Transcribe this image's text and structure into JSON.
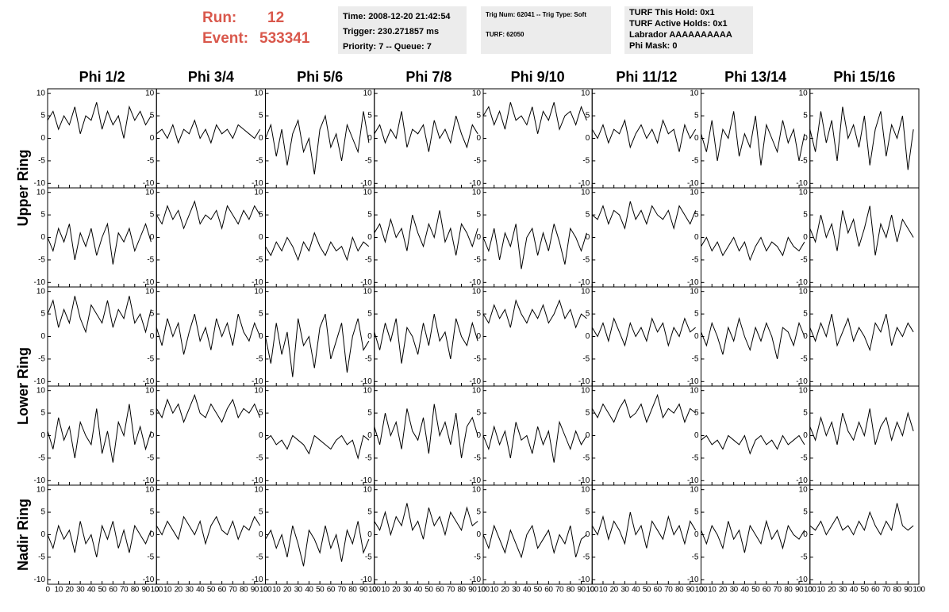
{
  "header": {
    "run_label": "Run:",
    "run": "12",
    "event_label": "Event:",
    "event": "533341",
    "box1": [
      "Time: 2008-12-20 21:42:54",
      "Trigger: 230.271857 ms",
      "Priority: 7 -- Queue: 7"
    ],
    "box2": [
      "Trig Num: 62041 -- Trig Type: Soft",
      "TURF: 62050"
    ],
    "box3": [
      "TURF This Hold: 0x1",
      "TURF Active Holds: 0x1",
      "Labrador AAAAAAAAAA",
      "Phi Mask: 0"
    ]
  },
  "chart_data": {
    "type": "line",
    "color": "#000000",
    "columns": [
      "Phi 1/2",
      "Phi 3/4",
      "Phi 5/6",
      "Phi 7/8",
      "Phi 9/10",
      "Phi 11/12",
      "Phi 13/14",
      "Phi 15/16"
    ],
    "rows": [
      "Upper Ring",
      "Lower Ring",
      "Nadir Ring"
    ],
    "xlim": [
      0,
      100
    ],
    "xticks": [
      0,
      10,
      20,
      30,
      40,
      50,
      60,
      70,
      80,
      90,
      100
    ],
    "ylim": [
      -11,
      11
    ],
    "yticks": [
      -10,
      -5,
      0,
      5,
      10
    ],
    "x": [
      0,
      5,
      10,
      15,
      20,
      25,
      30,
      35,
      40,
      45,
      50,
      55,
      60,
      65,
      70,
      75,
      80,
      85,
      90,
      95
    ],
    "traces": [
      [
        [
          4,
          6,
          2,
          5,
          3,
          7,
          1,
          5,
          4,
          8,
          2,
          6,
          3,
          5,
          0,
          7,
          4,
          6,
          3,
          5
        ],
        [
          1,
          2,
          0,
          3,
          -1,
          2,
          1,
          4,
          0,
          2,
          -1,
          3,
          1,
          2,
          0,
          3,
          2,
          1,
          0,
          2
        ],
        [
          0,
          3,
          -4,
          2,
          -6,
          1,
          4,
          -3,
          0,
          -8,
          2,
          5,
          -2,
          1,
          -5,
          3,
          0,
          -3,
          6,
          -1
        ],
        [
          1,
          3,
          -1,
          2,
          0,
          6,
          -2,
          2,
          1,
          3,
          -3,
          4,
          0,
          2,
          -1,
          5,
          1,
          -2,
          3,
          1
        ],
        [
          5,
          7,
          3,
          6,
          2,
          8,
          4,
          5,
          3,
          7,
          1,
          6,
          4,
          8,
          2,
          5,
          6,
          3,
          7,
          4
        ],
        [
          2,
          0,
          3,
          -1,
          2,
          1,
          4,
          -2,
          1,
          3,
          0,
          2,
          -1,
          4,
          1,
          2,
          -3,
          3,
          0,
          2
        ],
        [
          1,
          -3,
          4,
          -5,
          2,
          0,
          6,
          -4,
          1,
          -2,
          5,
          -6,
          3,
          0,
          -3,
          4,
          -1,
          2,
          -5,
          1
        ],
        [
          2,
          -3,
          6,
          -1,
          4,
          -5,
          7,
          0,
          3,
          -2,
          5,
          -6,
          2,
          6,
          -4,
          3,
          0,
          5,
          -7,
          2
        ]
      ],
      [
        [
          0,
          -3,
          2,
          -1,
          3,
          -5,
          1,
          -2,
          2,
          -4,
          0,
          3,
          -6,
          1,
          -1,
          2,
          -3,
          0,
          3,
          -1
        ],
        [
          5,
          3,
          7,
          4,
          6,
          2,
          5,
          8,
          3,
          5,
          4,
          6,
          2,
          7,
          5,
          3,
          6,
          4,
          7,
          5
        ],
        [
          -2,
          -4,
          -1,
          -3,
          0,
          -2,
          -5,
          -1,
          -3,
          1,
          -2,
          -4,
          -1,
          -3,
          -2,
          -5,
          0,
          -3,
          -1,
          -2
        ],
        [
          1,
          3,
          -1,
          4,
          0,
          2,
          -3,
          5,
          1,
          -2,
          3,
          0,
          6,
          -1,
          2,
          -4,
          3,
          1,
          -2,
          2
        ],
        [
          0,
          -3,
          2,
          -5,
          1,
          -2,
          3,
          -7,
          0,
          2,
          -4,
          1,
          -3,
          3,
          -1,
          -6,
          2,
          0,
          -3,
          1
        ],
        [
          5,
          4,
          7,
          3,
          6,
          5,
          2,
          8,
          4,
          6,
          3,
          7,
          5,
          4,
          6,
          2,
          7,
          5,
          3,
          6
        ],
        [
          -2,
          0,
          -3,
          -1,
          -4,
          -2,
          0,
          -3,
          -1,
          -5,
          -2,
          0,
          -3,
          -1,
          -2,
          -4,
          0,
          -2,
          -3,
          -1
        ],
        [
          2,
          -1,
          5,
          0,
          3,
          -3,
          6,
          1,
          4,
          -2,
          2,
          7,
          -4,
          3,
          0,
          5,
          -1,
          4,
          2,
          0
        ]
      ],
      [
        [
          5,
          8,
          2,
          6,
          3,
          9,
          4,
          1,
          7,
          5,
          3,
          8,
          2,
          6,
          4,
          9,
          3,
          5,
          1,
          6
        ],
        [
          2,
          -2,
          4,
          0,
          3,
          -4,
          1,
          5,
          -1,
          2,
          -3,
          4,
          0,
          3,
          -2,
          5,
          1,
          -1,
          3,
          0
        ],
        [
          0,
          -6,
          3,
          -4,
          1,
          -9,
          4,
          -2,
          0,
          -7,
          2,
          5,
          -5,
          -1,
          3,
          -8,
          0,
          4,
          -3,
          -1
        ],
        [
          1,
          -3,
          3,
          -1,
          4,
          -6,
          2,
          0,
          -4,
          3,
          -2,
          5,
          -1,
          1,
          -5,
          4,
          0,
          -2,
          3,
          -1
        ],
        [
          5,
          3,
          7,
          4,
          6,
          2,
          8,
          5,
          3,
          6,
          4,
          7,
          3,
          5,
          8,
          4,
          6,
          2,
          5,
          4
        ],
        [
          2,
          0,
          3,
          -1,
          4,
          1,
          -2,
          3,
          0,
          2,
          -1,
          4,
          1,
          3,
          -2,
          2,
          0,
          4,
          1,
          2
        ],
        [
          1,
          -2,
          3,
          0,
          -4,
          2,
          -1,
          4,
          0,
          -3,
          2,
          -1,
          3,
          0,
          -5,
          2,
          1,
          -2,
          3,
          0
        ],
        [
          2,
          -1,
          3,
          0,
          5,
          -2,
          1,
          4,
          -1,
          2,
          0,
          -3,
          3,
          1,
          5,
          -2,
          2,
          0,
          3,
          1
        ]
      ],
      [
        [
          1,
          -3,
          4,
          -1,
          2,
          -5,
          3,
          0,
          -2,
          6,
          -4,
          1,
          -6,
          3,
          0,
          7,
          -2,
          2,
          -3,
          1
        ],
        [
          6,
          4,
          8,
          5,
          7,
          3,
          6,
          9,
          5,
          4,
          7,
          5,
          3,
          6,
          8,
          4,
          6,
          5,
          7,
          4
        ],
        [
          -1,
          0,
          -2,
          -1,
          -3,
          0,
          -1,
          -2,
          -4,
          0,
          -1,
          -2,
          -3,
          -1,
          0,
          -2,
          -1,
          -5,
          0,
          -1
        ],
        [
          2,
          -2,
          5,
          0,
          3,
          -3,
          6,
          1,
          -1,
          4,
          -4,
          7,
          0,
          3,
          -2,
          5,
          -5,
          2,
          4,
          0
        ],
        [
          0,
          -3,
          2,
          -2,
          1,
          -5,
          3,
          -1,
          0,
          -4,
          2,
          -2,
          1,
          -6,
          3,
          0,
          -3,
          1,
          -2,
          0
        ],
        [
          6,
          4,
          7,
          5,
          3,
          6,
          8,
          4,
          5,
          7,
          3,
          6,
          9,
          4,
          6,
          5,
          7,
          3,
          6,
          5
        ],
        [
          -1,
          0,
          -2,
          -1,
          -3,
          0,
          -1,
          -2,
          0,
          -4,
          -1,
          0,
          -2,
          -1,
          -3,
          0,
          -2,
          -1,
          0,
          -2
        ],
        [
          2,
          -1,
          4,
          0,
          3,
          -2,
          5,
          1,
          -1,
          3,
          0,
          6,
          -2,
          2,
          4,
          -1,
          3,
          0,
          5,
          1
        ]
      ],
      [
        [
          0,
          -3,
          2,
          -1,
          1,
          -4,
          3,
          -2,
          0,
          -5,
          2,
          -1,
          3,
          -3,
          1,
          -4,
          2,
          0,
          -2,
          1
        ],
        [
          2,
          0,
          3,
          1,
          -1,
          4,
          2,
          0,
          3,
          -2,
          2,
          4,
          1,
          0,
          3,
          -1,
          2,
          1,
          4,
          2
        ],
        [
          -1,
          1,
          -3,
          0,
          -5,
          2,
          -2,
          -7,
          1,
          -1,
          -4,
          2,
          -3,
          0,
          -6,
          1,
          -2,
          3,
          -4,
          -1
        ],
        [
          3,
          1,
          5,
          0,
          4,
          2,
          7,
          1,
          3,
          -1,
          6,
          2,
          4,
          0,
          5,
          3,
          1,
          6,
          2,
          3
        ],
        [
          0,
          -3,
          2,
          -1,
          -4,
          1,
          -2,
          -5,
          0,
          2,
          -3,
          -1,
          1,
          -4,
          0,
          -2,
          2,
          -5,
          -1,
          0
        ],
        [
          2,
          0,
          4,
          -1,
          3,
          1,
          -2,
          5,
          0,
          2,
          -3,
          3,
          1,
          -1,
          4,
          0,
          2,
          -2,
          3,
          1
        ],
        [
          1,
          -2,
          2,
          0,
          -3,
          3,
          -1,
          1,
          -4,
          2,
          0,
          -2,
          3,
          -1,
          1,
          -3,
          2,
          0,
          -1,
          1
        ],
        [
          2,
          1,
          3,
          0,
          2,
          4,
          1,
          2,
          0,
          3,
          1,
          5,
          2,
          0,
          3,
          1,
          7,
          2,
          1,
          2
        ]
      ]
    ]
  }
}
